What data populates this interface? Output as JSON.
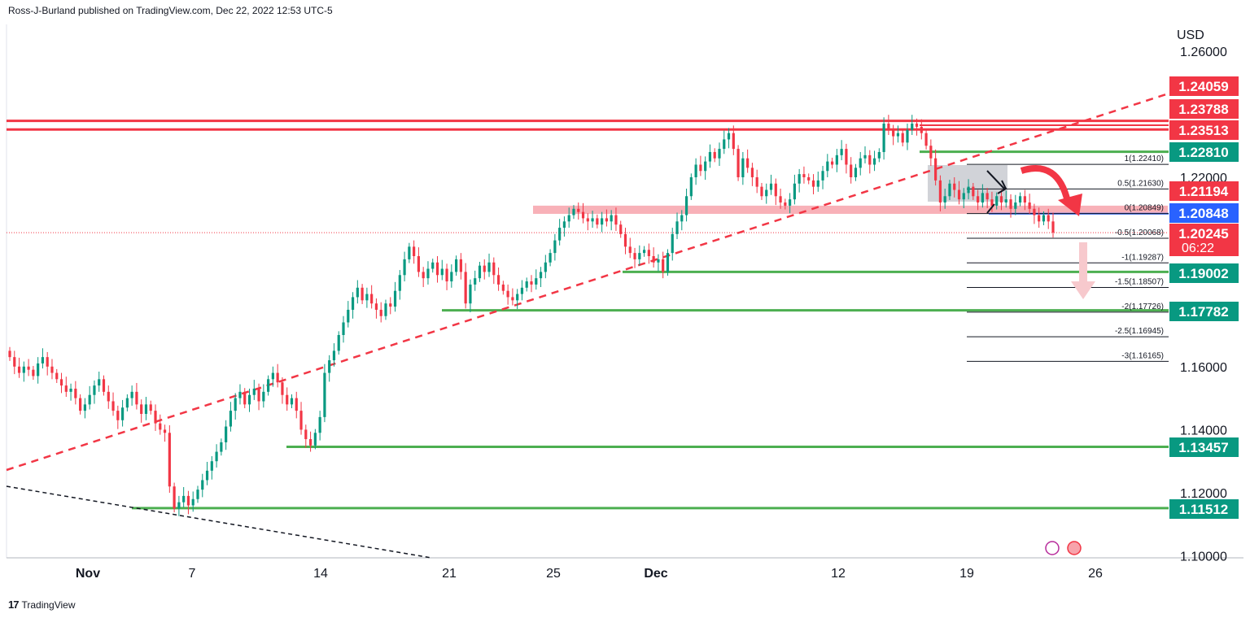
{
  "header": {
    "published": "Ross-J-Burland published on TradingView.com, Dec 22, 2022 12:53 UTC-5"
  },
  "footer": {
    "brand": "TradingView"
  },
  "chart_data": {
    "type": "candlestick",
    "currency": "USD",
    "ylim": [
      1.1,
      1.265
    ],
    "y_ticks": [
      "1.26000",
      "1.22000",
      "1.16000",
      "1.14000",
      "1.12000",
      "1.10000"
    ],
    "x_ticks": [
      "Nov",
      "7",
      "14",
      "21",
      "25",
      "Dec",
      "12",
      "19",
      "26"
    ],
    "price_labels": [
      {
        "value": "1.24059",
        "color": "#f23645"
      },
      {
        "value": "1.23788",
        "color": "#f23645"
      },
      {
        "value": "1.23513",
        "color": "#f23645"
      },
      {
        "value": "1.22810",
        "color": "#089981"
      },
      {
        "value": "1.21194",
        "color": "#f23645"
      },
      {
        "value": "1.20848",
        "color": "#2962ff"
      },
      {
        "value": "1.20245",
        "color": "#f23645",
        "countdown": "06:22"
      },
      {
        "value": "1.19002",
        "color": "#089981"
      },
      {
        "value": "1.17782",
        "color": "#089981"
      },
      {
        "value": "1.13457",
        "color": "#089981"
      },
      {
        "value": "1.11512",
        "color": "#089981"
      }
    ],
    "fib_levels": [
      {
        "label": "1(1.22410)",
        "value": 1.2241
      },
      {
        "label": "0.5(1.21630)",
        "value": 1.2163
      },
      {
        "label": "0(1.20849)",
        "value": 1.20849
      },
      {
        "label": "-0.5(1.20068)",
        "value": 1.20068
      },
      {
        "label": "-1(1.19287)",
        "value": 1.19287
      },
      {
        "label": "-1.5(1.18507)",
        "value": 1.18507
      },
      {
        "label": "-2(1.17726)",
        "value": 1.17726
      },
      {
        "label": "-2.5(1.16945)",
        "value": 1.16945
      },
      {
        "label": "-3(1.16165)",
        "value": 1.16165
      }
    ],
    "resistance_lines": [
      1.23788,
      1.23513
    ],
    "support_lines": [
      1.2281,
      1.19002,
      1.17782,
      1.13457,
      1.11512
    ],
    "zone": [
      1.2084,
      1.211
    ],
    "last_price": 1.20245,
    "colors": {
      "up": "#089981",
      "down": "#f23645",
      "support": "#4caf50",
      "resistance": "#f23645",
      "fib": "#131722",
      "trend": "#f23645"
    },
    "candles_close": [
      1.163,
      1.16,
      1.158,
      1.16,
      1.159,
      1.157,
      1.161,
      1.163,
      1.16,
      1.158,
      1.156,
      1.154,
      1.152,
      1.153,
      1.15,
      1.146,
      1.148,
      1.151,
      1.154,
      1.156,
      1.152,
      1.149,
      1.146,
      1.143,
      1.147,
      1.15,
      1.152,
      1.148,
      1.145,
      1.148,
      1.146,
      1.142,
      1.14,
      1.139,
      1.122,
      1.115,
      1.117,
      1.119,
      1.116,
      1.118,
      1.121,
      1.124,
      1.127,
      1.13,
      1.133,
      1.136,
      1.141,
      1.146,
      1.15,
      1.152,
      1.148,
      1.151,
      1.153,
      1.149,
      1.152,
      1.156,
      1.158,
      1.155,
      1.151,
      1.148,
      1.15,
      1.146,
      1.14,
      1.137,
      1.135,
      1.139,
      1.144,
      1.158,
      1.162,
      1.165,
      1.17,
      1.174,
      1.178,
      1.182,
      1.185,
      1.181,
      1.183,
      1.18,
      1.178,
      1.176,
      1.18,
      1.179,
      1.184,
      1.189,
      1.194,
      1.198,
      1.195,
      1.19,
      1.188,
      1.191,
      1.193,
      1.189,
      1.191,
      1.187,
      1.19,
      1.194,
      1.19,
      1.18,
      1.186,
      1.188,
      1.192,
      1.19,
      1.193,
      1.189,
      1.186,
      1.184,
      1.182,
      1.181,
      1.183,
      1.185,
      1.187,
      1.186,
      1.188,
      1.19,
      1.193,
      1.196,
      1.2,
      1.204,
      1.206,
      1.208,
      1.21,
      1.209,
      1.207,
      1.206,
      1.207,
      1.205,
      1.207,
      1.206,
      1.208,
      1.205,
      1.202,
      1.198,
      1.196,
      1.194,
      1.196,
      1.197,
      1.195,
      1.193,
      1.194,
      1.19,
      1.196,
      1.202,
      1.206,
      1.208,
      1.214,
      1.22,
      1.224,
      1.222,
      1.225,
      1.228,
      1.226,
      1.229,
      1.232,
      1.234,
      1.229,
      1.22,
      1.226,
      1.223,
      1.22,
      1.217,
      1.214,
      1.216,
      1.218,
      1.214,
      1.212,
      1.211,
      1.213,
      1.218,
      1.221,
      1.22,
      1.219,
      1.217,
      1.219,
      1.222,
      1.225,
      1.224,
      1.227,
      1.229,
      1.224,
      1.22,
      1.223,
      1.226,
      1.227,
      1.224,
      1.226,
      1.228,
      1.237,
      1.235,
      1.233,
      1.234,
      1.231,
      1.235,
      1.237,
      1.236,
      1.234,
      1.23,
      1.226,
      1.219,
      1.212,
      1.214,
      1.218,
      1.216,
      1.213,
      1.215,
      1.217,
      1.214,
      1.212,
      1.215,
      1.213,
      1.211,
      1.214,
      1.212,
      1.213,
      1.21,
      1.212,
      1.214,
      1.212,
      1.21,
      1.208,
      1.206,
      1.208,
      1.206,
      1.2025
    ]
  }
}
